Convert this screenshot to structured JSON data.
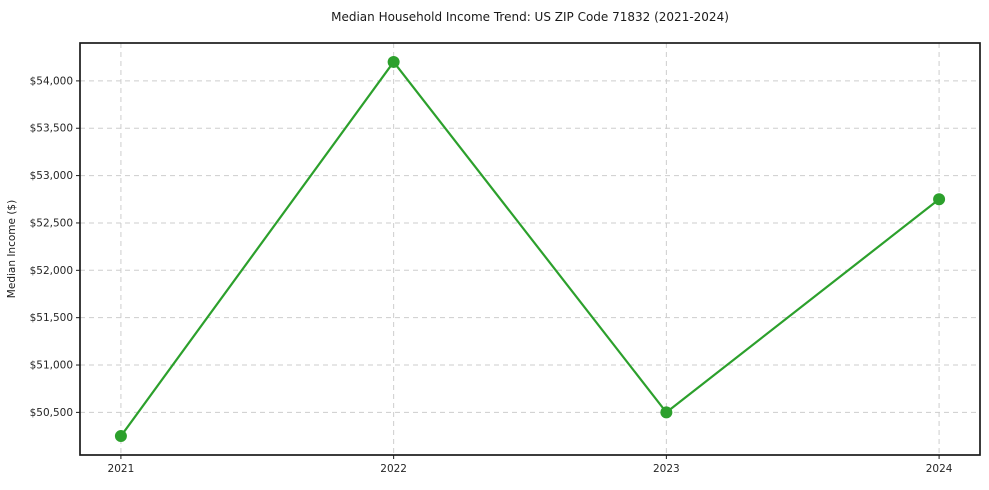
{
  "chart_data": {
    "type": "line",
    "title": "Median Household Income Trend: US ZIP Code 71832 (2021-2024)",
    "xlabel": "",
    "ylabel": "Median Income ($)",
    "x": [
      2021,
      2022,
      2023,
      2024
    ],
    "values": [
      50250,
      54200,
      50500,
      52750
    ],
    "series_name": "Median Household Income",
    "xtick_values": [
      2021,
      2022,
      2023,
      2024
    ],
    "xtick_labels": [
      "2021",
      "2022",
      "2023",
      "2024"
    ],
    "ytick_values": [
      50500,
      51000,
      51500,
      52000,
      52500,
      53000,
      53500,
      54000
    ],
    "ytick_labels": [
      "$50,500",
      "$51,000",
      "$51,500",
      "$52,000",
      "$52,500",
      "$53,000",
      "$53,500",
      "$54,000"
    ],
    "xlim": [
      2020.85,
      2024.15
    ],
    "ylim": [
      50050,
      54400
    ],
    "grid": true,
    "grid_style": "dashed",
    "legend_position": "none",
    "colors": {
      "line": "#2ca02c",
      "marker": "#2ca02c",
      "grid": "#cdcdcd",
      "spine": "#1a1a1a",
      "background": "#ffffff",
      "text": "#262626"
    }
  }
}
